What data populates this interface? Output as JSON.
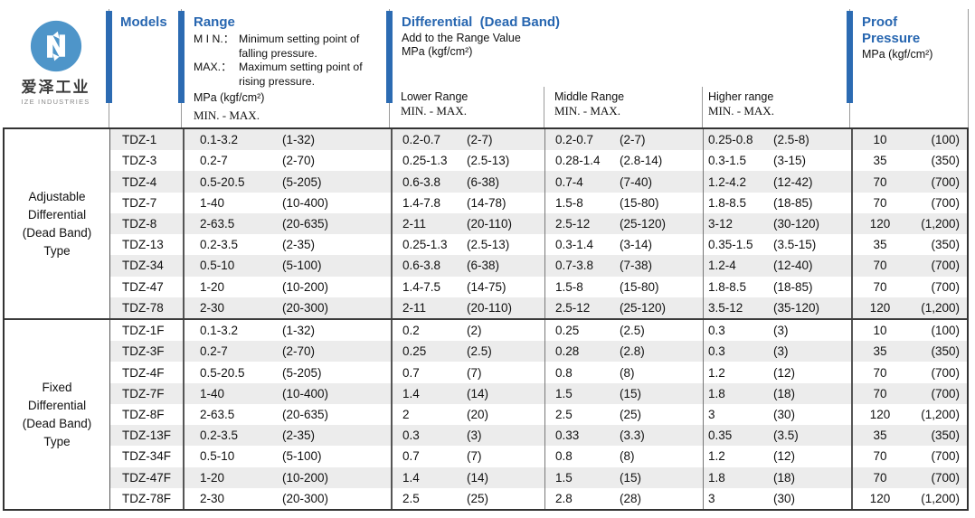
{
  "brand": {
    "logo_icon": "ize-circular-arrows-logo",
    "company_cn": "爱泽工业",
    "company_en": "IZE INDUSTRIES"
  },
  "colors": {
    "accent_blue": "#2766b0",
    "bar_blue": "#2c6bb2",
    "logo_blue": "#4e95c9",
    "stripe_gray": "#ececec"
  },
  "header": {
    "models_title": "Models",
    "range": {
      "title": "Range",
      "notes": [
        {
          "term": "M I N.：",
          "text": "Minimum setting point of falling pressure."
        },
        {
          "term": "MAX.：",
          "text": "Maximum setting point of rising pressure."
        }
      ],
      "unit": "MPa (kgf/cm²)",
      "minmax": "MIN. - MAX."
    },
    "differential": {
      "title": "Differential  (Dead Band)",
      "subtitle": "Add to the Range Value",
      "unit": "MPa (kgf/cm²)",
      "sub_columns": [
        {
          "label": "Lower Range",
          "minmax": "MIN. - MAX."
        },
        {
          "label": "Middle Range",
          "minmax": "MIN. - MAX."
        },
        {
          "label": "Higher range",
          "minmax": "MIN. - MAX."
        }
      ]
    },
    "proof": {
      "title": "Proof Pressure",
      "unit": "MPa (kgf/cm²)"
    }
  },
  "table": {
    "groups": [
      {
        "label": "Adjustable Differential (Dead Band) Type",
        "rows": [
          {
            "model": "TDZ-1",
            "range_mpa": "0.1-3.2",
            "range_kgf": "(1-32)",
            "lower_mpa": "0.2-0.7",
            "lower_kgf": "(2-7)",
            "middle_mpa": "0.2-0.7",
            "middle_kgf": "(2-7)",
            "higher_mpa": "0.25-0.8",
            "higher_kgf": "(2.5-8)",
            "proof_mpa": "10",
            "proof_kgf": "(100)"
          },
          {
            "model": "TDZ-3",
            "range_mpa": "0.2-7",
            "range_kgf": "(2-70)",
            "lower_mpa": "0.25-1.3",
            "lower_kgf": "(2.5-13)",
            "middle_mpa": "0.28-1.4",
            "middle_kgf": "(2.8-14)",
            "higher_mpa": "0.3-1.5",
            "higher_kgf": "(3-15)",
            "proof_mpa": "35",
            "proof_kgf": "(350)"
          },
          {
            "model": "TDZ-4",
            "range_mpa": "0.5-20.5",
            "range_kgf": "(5-205)",
            "lower_mpa": "0.6-3.8",
            "lower_kgf": "(6-38)",
            "middle_mpa": "0.7-4",
            "middle_kgf": "(7-40)",
            "higher_mpa": "1.2-4.2",
            "higher_kgf": "(12-42)",
            "proof_mpa": "70",
            "proof_kgf": "(700)"
          },
          {
            "model": "TDZ-7",
            "range_mpa": "1-40",
            "range_kgf": "(10-400)",
            "lower_mpa": "1.4-7.8",
            "lower_kgf": "(14-78)",
            "middle_mpa": "1.5-8",
            "middle_kgf": "(15-80)",
            "higher_mpa": "1.8-8.5",
            "higher_kgf": "(18-85)",
            "proof_mpa": "70",
            "proof_kgf": "(700)"
          },
          {
            "model": "TDZ-8",
            "range_mpa": "2-63.5",
            "range_kgf": "(20-635)",
            "lower_mpa": "2-11",
            "lower_kgf": "(20-110)",
            "middle_mpa": "2.5-12",
            "middle_kgf": "(25-120)",
            "higher_mpa": "3-12",
            "higher_kgf": "(30-120)",
            "proof_mpa": "120",
            "proof_kgf": "(1,200)"
          },
          {
            "model": "TDZ-13",
            "range_mpa": "0.2-3.5",
            "range_kgf": "(2-35)",
            "lower_mpa": "0.25-1.3",
            "lower_kgf": "(2.5-13)",
            "middle_mpa": "0.3-1.4",
            "middle_kgf": "(3-14)",
            "higher_mpa": "0.35-1.5",
            "higher_kgf": "(3.5-15)",
            "proof_mpa": "35",
            "proof_kgf": "(350)"
          },
          {
            "model": "TDZ-34",
            "range_mpa": "0.5-10",
            "range_kgf": "(5-100)",
            "lower_mpa": "0.6-3.8",
            "lower_kgf": "(6-38)",
            "middle_mpa": "0.7-3.8",
            "middle_kgf": "(7-38)",
            "higher_mpa": "1.2-4",
            "higher_kgf": "(12-40)",
            "proof_mpa": "70",
            "proof_kgf": "(700)"
          },
          {
            "model": "TDZ-47",
            "range_mpa": "1-20",
            "range_kgf": "(10-200)",
            "lower_mpa": "1.4-7.5",
            "lower_kgf": "(14-75)",
            "middle_mpa": "1.5-8",
            "middle_kgf": "(15-80)",
            "higher_mpa": "1.8-8.5",
            "higher_kgf": "(18-85)",
            "proof_mpa": "70",
            "proof_kgf": "(700)"
          },
          {
            "model": "TDZ-78",
            "range_mpa": "2-30",
            "range_kgf": "(20-300)",
            "lower_mpa": "2-11",
            "lower_kgf": "(20-110)",
            "middle_mpa": "2.5-12",
            "middle_kgf": "(25-120)",
            "higher_mpa": "3.5-12",
            "higher_kgf": "(35-120)",
            "proof_mpa": "120",
            "proof_kgf": "(1,200)"
          }
        ]
      },
      {
        "label": "Fixed Differential (Dead Band) Type",
        "rows": [
          {
            "model": "TDZ-1F",
            "range_mpa": "0.1-3.2",
            "range_kgf": "(1-32)",
            "lower_mpa": "0.2",
            "lower_kgf": "(2)",
            "middle_mpa": "0.25",
            "middle_kgf": "(2.5)",
            "higher_mpa": "0.3",
            "higher_kgf": "(3)",
            "proof_mpa": "10",
            "proof_kgf": "(100)"
          },
          {
            "model": "TDZ-3F",
            "range_mpa": "0.2-7",
            "range_kgf": "(2-70)",
            "lower_mpa": "0.25",
            "lower_kgf": "(2.5)",
            "middle_mpa": "0.28",
            "middle_kgf": "(2.8)",
            "higher_mpa": "0.3",
            "higher_kgf": "(3)",
            "proof_mpa": "35",
            "proof_kgf": "(350)"
          },
          {
            "model": "TDZ-4F",
            "range_mpa": "0.5-20.5",
            "range_kgf": "(5-205)",
            "lower_mpa": "0.7",
            "lower_kgf": "(7)",
            "middle_mpa": "0.8",
            "middle_kgf": "(8)",
            "higher_mpa": "1.2",
            "higher_kgf": "(12)",
            "proof_mpa": "70",
            "proof_kgf": "(700)"
          },
          {
            "model": "TDZ-7F",
            "range_mpa": "1-40",
            "range_kgf": "(10-400)",
            "lower_mpa": "1.4",
            "lower_kgf": "(14)",
            "middle_mpa": "1.5",
            "middle_kgf": "(15)",
            "higher_mpa": "1.8",
            "higher_kgf": "(18)",
            "proof_mpa": "70",
            "proof_kgf": "(700)"
          },
          {
            "model": "TDZ-8F",
            "range_mpa": "2-63.5",
            "range_kgf": "(20-635)",
            "lower_mpa": "2",
            "lower_kgf": "(20)",
            "middle_mpa": "2.5",
            "middle_kgf": "(25)",
            "higher_mpa": "3",
            "higher_kgf": "(30)",
            "proof_mpa": "120",
            "proof_kgf": "(1,200)"
          },
          {
            "model": "TDZ-13F",
            "range_mpa": "0.2-3.5",
            "range_kgf": "(2-35)",
            "lower_mpa": "0.3",
            "lower_kgf": "(3)",
            "middle_mpa": "0.33",
            "middle_kgf": "(3.3)",
            "higher_mpa": "0.35",
            "higher_kgf": "(3.5)",
            "proof_mpa": "35",
            "proof_kgf": "(350)"
          },
          {
            "model": "TDZ-34F",
            "range_mpa": "0.5-10",
            "range_kgf": "(5-100)",
            "lower_mpa": "0.7",
            "lower_kgf": "(7)",
            "middle_mpa": "0.8",
            "middle_kgf": "(8)",
            "higher_mpa": "1.2",
            "higher_kgf": "(12)",
            "proof_mpa": "70",
            "proof_kgf": "(700)"
          },
          {
            "model": "TDZ-47F",
            "range_mpa": "1-20",
            "range_kgf": "(10-200)",
            "lower_mpa": "1.4",
            "lower_kgf": "(14)",
            "middle_mpa": "1.5",
            "middle_kgf": "(15)",
            "higher_mpa": "1.8",
            "higher_kgf": "(18)",
            "proof_mpa": "70",
            "proof_kgf": "(700)"
          },
          {
            "model": "TDZ-78F",
            "range_mpa": "2-30",
            "range_kgf": "(20-300)",
            "lower_mpa": "2.5",
            "lower_kgf": "(25)",
            "middle_mpa": "2.8",
            "middle_kgf": "(28)",
            "higher_mpa": "3",
            "higher_kgf": "(30)",
            "proof_mpa": "120",
            "proof_kgf": "(1,200)"
          }
        ]
      }
    ]
  }
}
